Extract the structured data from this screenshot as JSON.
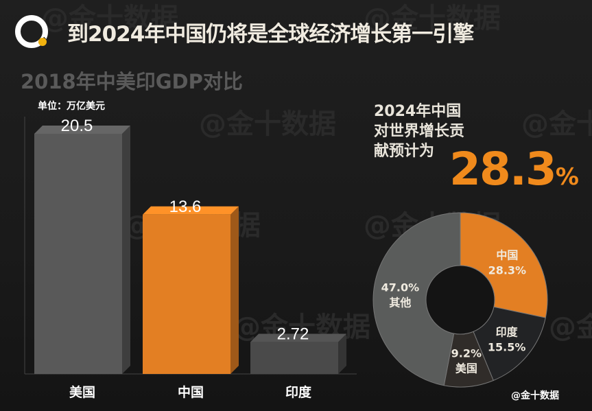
{
  "title": "到2024年中国仍将是全球经济增长第一引擎",
  "watermark": "@金十数据",
  "credit": "@金十数据",
  "colors": {
    "orange": "#e37f23",
    "gray": "#595959",
    "dark": "#222325",
    "brown": "#302c29",
    "background": "#1c1c1c"
  },
  "chart_data": [
    {
      "type": "bar",
      "title": "2018年中美印GDP对比",
      "unit_label": "单位：万亿美元",
      "categories": [
        "美国",
        "中国",
        "印度"
      ],
      "values": [
        20.5,
        13.6,
        2.72
      ],
      "value_labels": [
        "20.5",
        "13.6",
        "2.72"
      ],
      "bar_colors": [
        "#595959",
        "#e37f23",
        "#4a4a4a"
      ],
      "ylim": [
        0,
        20.5
      ]
    },
    {
      "type": "pie",
      "variant": "donut",
      "headline": [
        "2024年中国",
        "对世界增长贡",
        "献预计为"
      ],
      "headline_value": "28.3",
      "headline_unit": "%",
      "slices": [
        {
          "label": "中国",
          "value": 28.3,
          "text": "28.3%",
          "color": "#e37f23"
        },
        {
          "label": "印度",
          "value": 15.5,
          "text": "15.5%",
          "color": "#222325"
        },
        {
          "label": "美国",
          "value": 9.2,
          "text": "9.2%",
          "color": "#302c29"
        },
        {
          "label": "其他",
          "value": 47.0,
          "text": "47.0%",
          "color": "#5a5c5b"
        }
      ]
    }
  ]
}
